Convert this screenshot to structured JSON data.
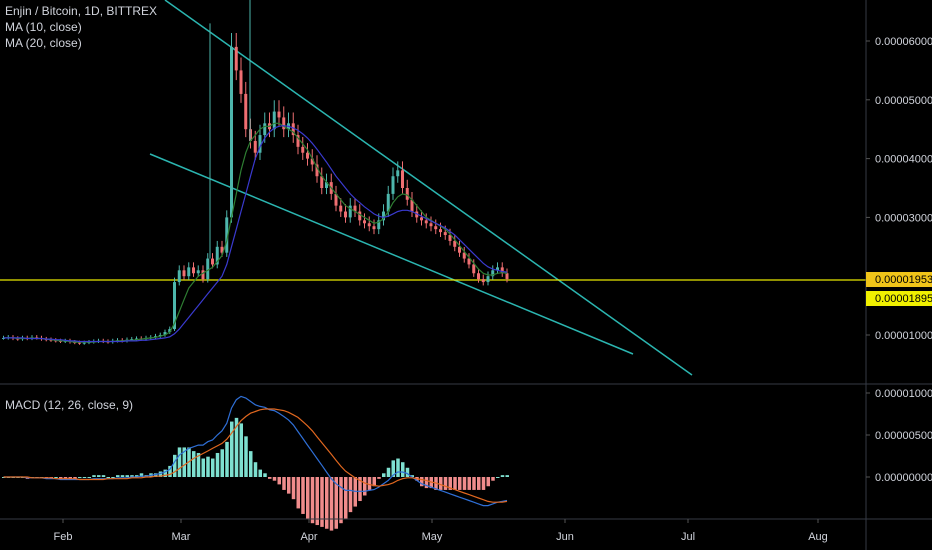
{
  "header": {
    "symbol_title": "Enjin / Bitcoin, 1D, BITTREX",
    "ma1_label": "MA (10, close)",
    "ma2_label": "MA (20, close)",
    "macd_label": "MACD (12, 26, close, 9)"
  },
  "colors": {
    "background": "#000000",
    "up": "#4db6ac",
    "down": "#ef6f72",
    "wedge": "#2bb5b0",
    "ma10": "#2e7d32",
    "ma20": "#3a3acf",
    "macd_line": "#2f6fd6",
    "signal_line": "#e0671f",
    "hist_up": "#7ee0d0",
    "hist_down": "#f08c8c",
    "price_line": "#e8e800",
    "grid": "#2a2e39"
  },
  "chart_data": [
    {
      "type": "candlestick",
      "title": "Enjin / Bitcoin, 1D, BITTREX",
      "y_ticks": [
        "0.00001000",
        "0.00002000",
        "0.00003000",
        "0.00004000",
        "0.00005000",
        "0.00006000"
      ],
      "y_tick_values": [
        1e-05,
        2e-05,
        3e-05,
        4e-05,
        5e-05,
        6e-05
      ],
      "x_ticks": [
        "Feb",
        "Mar",
        "Apr",
        "May",
        "Jun",
        "Jul",
        "Aug"
      ],
      "current_price_label": "0.00001953",
      "current_price": 1.953e-05,
      "secondary_price_label": "0.00001895",
      "secondary_price": 1.895e-05,
      "ohlc_close": [
        0.95,
        0.96,
        0.94,
        0.93,
        0.95,
        0.94,
        0.96,
        0.95,
        0.93,
        0.92,
        0.91,
        0.9,
        0.89,
        0.9,
        0.88,
        0.87,
        0.86,
        0.87,
        0.88,
        0.89,
        0.9,
        0.89,
        0.88,
        0.9,
        0.91,
        0.9,
        0.92,
        0.93,
        0.94,
        0.93,
        0.95,
        0.96,
        0.98,
        1.0,
        1.05,
        1.1,
        1.9,
        2.1,
        2.0,
        2.15,
        2.05,
        2.1,
        1.95,
        2.3,
        2.2,
        2.5,
        2.4,
        3.0,
        5.9,
        5.5,
        5.1,
        4.5,
        4.3,
        4.1,
        4.4,
        4.6,
        4.5,
        4.8,
        4.7,
        4.5,
        4.6,
        4.4,
        4.2,
        4.1,
        4.0,
        3.9,
        3.7,
        3.5,
        3.6,
        3.4,
        3.2,
        3.1,
        3.0,
        3.2,
        3.1,
        2.95,
        2.9,
        2.85,
        2.8,
        2.95,
        3.1,
        3.4,
        3.7,
        3.8,
        3.5,
        3.3,
        3.1,
        3.0,
        2.95,
        2.9,
        2.85,
        2.8,
        2.75,
        2.7,
        2.6,
        2.5,
        2.4,
        2.3,
        2.2,
        2.05,
        1.95,
        1.9,
        2.0,
        2.1,
        2.15,
        2.05,
        1.953
      ],
      "ma10": [
        0.95,
        0.95,
        0.95,
        0.94,
        0.94,
        0.94,
        0.95,
        0.94,
        0.94,
        0.93,
        0.92,
        0.91,
        0.9,
        0.9,
        0.89,
        0.88,
        0.88,
        0.88,
        0.88,
        0.88,
        0.89,
        0.89,
        0.89,
        0.89,
        0.9,
        0.9,
        0.91,
        0.91,
        0.92,
        0.93,
        0.94,
        0.95,
        0.96,
        0.98,
        1.0,
        1.05,
        1.2,
        1.4,
        1.6,
        1.8,
        1.9,
        2.0,
        2.05,
        2.1,
        2.15,
        2.25,
        2.35,
        2.6,
        3.0,
        3.4,
        3.8,
        4.1,
        4.3,
        4.4,
        4.5,
        4.55,
        4.55,
        4.6,
        4.6,
        4.55,
        4.5,
        4.45,
        4.35,
        4.25,
        4.15,
        4.0,
        3.85,
        3.7,
        3.6,
        3.5,
        3.4,
        3.3,
        3.2,
        3.15,
        3.1,
        3.05,
        3.0,
        2.95,
        2.9,
        2.92,
        2.98,
        3.1,
        3.25,
        3.35,
        3.4,
        3.38,
        3.3,
        3.2,
        3.1,
        3.0,
        2.95,
        2.9,
        2.85,
        2.8,
        2.72,
        2.62,
        2.52,
        2.42,
        2.32,
        2.22,
        2.12,
        2.05,
        2.02,
        2.02,
        2.05,
        2.06,
        2.05
      ],
      "ma20": [
        0.95,
        0.95,
        0.95,
        0.95,
        0.95,
        0.94,
        0.94,
        0.94,
        0.94,
        0.93,
        0.93,
        0.92,
        0.92,
        0.91,
        0.9,
        0.9,
        0.89,
        0.89,
        0.89,
        0.89,
        0.89,
        0.89,
        0.89,
        0.89,
        0.89,
        0.89,
        0.9,
        0.9,
        0.9,
        0.91,
        0.91,
        0.92,
        0.93,
        0.94,
        0.95,
        0.97,
        1.02,
        1.1,
        1.2,
        1.3,
        1.4,
        1.5,
        1.6,
        1.7,
        1.8,
        1.9,
        2.0,
        2.2,
        2.5,
        2.8,
        3.1,
        3.4,
        3.7,
        4.0,
        4.2,
        4.35,
        4.45,
        4.52,
        4.55,
        4.56,
        4.55,
        4.52,
        4.48,
        4.42,
        4.35,
        4.26,
        4.16,
        4.05,
        3.94,
        3.82,
        3.7,
        3.6,
        3.5,
        3.4,
        3.32,
        3.25,
        3.18,
        3.12,
        3.06,
        3.02,
        3.0,
        3.02,
        3.06,
        3.1,
        3.12,
        3.12,
        3.1,
        3.06,
        3.02,
        2.98,
        2.94,
        2.9,
        2.86,
        2.82,
        2.76,
        2.7,
        2.62,
        2.54,
        2.46,
        2.38,
        2.3,
        2.22,
        2.16,
        2.12,
        2.1,
        2.08,
        2.07
      ],
      "wedge_upper": [
        [
          2.5e-05,
          0.00013,
          3.9e-05,
          4.8e-06
        ]
      ],
      "notes": "close/ma values in units of 1e-5 BTC"
    },
    {
      "type": "line",
      "title": "MACD (12, 26, close, 9)",
      "y_ticks": [
        "0.00001000",
        "0.00000500",
        "0.00000000"
      ],
      "y_tick_values": [
        1.0,
        0.5,
        0.0
      ],
      "notes": "values in units of 1e-5 BTC",
      "macd": [
        0.0,
        0.0,
        0.0,
        0.0,
        0.0,
        -0.01,
        -0.01,
        -0.01,
        -0.01,
        -0.02,
        -0.02,
        -0.02,
        -0.03,
        -0.03,
        -0.03,
        -0.03,
        -0.03,
        -0.03,
        -0.03,
        -0.02,
        -0.02,
        -0.02,
        -0.02,
        -0.02,
        -0.01,
        -0.01,
        -0.01,
        0.0,
        0.0,
        0.01,
        0.01,
        0.02,
        0.03,
        0.04,
        0.06,
        0.09,
        0.18,
        0.26,
        0.3,
        0.34,
        0.36,
        0.38,
        0.38,
        0.42,
        0.44,
        0.5,
        0.55,
        0.64,
        0.82,
        0.92,
        0.96,
        0.94,
        0.9,
        0.86,
        0.84,
        0.83,
        0.8,
        0.79,
        0.76,
        0.72,
        0.68,
        0.62,
        0.54,
        0.46,
        0.38,
        0.3,
        0.22,
        0.14,
        0.06,
        -0.02,
        -0.08,
        -0.12,
        -0.16,
        -0.16,
        -0.17,
        -0.17,
        -0.17,
        -0.16,
        -0.15,
        -0.12,
        -0.08,
        -0.04,
        0.02,
        0.06,
        0.06,
        0.04,
        0.0,
        -0.04,
        -0.08,
        -0.1,
        -0.12,
        -0.14,
        -0.16,
        -0.18,
        -0.2,
        -0.22,
        -0.24,
        -0.26,
        -0.28,
        -0.3,
        -0.32,
        -0.34,
        -0.34,
        -0.32,
        -0.3,
        -0.29,
        -0.28
      ],
      "signal": [
        0.0,
        0.0,
        0.0,
        0.0,
        0.0,
        0.0,
        -0.01,
        -0.01,
        -0.01,
        -0.01,
        -0.01,
        -0.02,
        -0.02,
        -0.02,
        -0.02,
        -0.02,
        -0.03,
        -0.03,
        -0.03,
        -0.03,
        -0.03,
        -0.03,
        -0.02,
        -0.02,
        -0.02,
        -0.02,
        -0.02,
        -0.01,
        -0.01,
        -0.01,
        0.0,
        0.0,
        0.01,
        0.01,
        0.02,
        0.03,
        0.06,
        0.1,
        0.14,
        0.18,
        0.22,
        0.25,
        0.28,
        0.31,
        0.34,
        0.37,
        0.4,
        0.45,
        0.52,
        0.6,
        0.67,
        0.72,
        0.76,
        0.78,
        0.8,
        0.81,
        0.81,
        0.81,
        0.8,
        0.79,
        0.77,
        0.74,
        0.71,
        0.66,
        0.61,
        0.55,
        0.48,
        0.41,
        0.34,
        0.27,
        0.2,
        0.13,
        0.07,
        0.03,
        -0.01,
        -0.04,
        -0.07,
        -0.09,
        -0.1,
        -0.11,
        -0.1,
        -0.09,
        -0.07,
        -0.04,
        -0.02,
        -0.01,
        -0.01,
        -0.02,
        -0.03,
        -0.04,
        -0.06,
        -0.07,
        -0.09,
        -0.11,
        -0.13,
        -0.15,
        -0.17,
        -0.19,
        -0.21,
        -0.23,
        -0.25,
        -0.27,
        -0.29,
        -0.3,
        -0.3,
        -0.3,
        -0.29
      ]
    }
  ]
}
